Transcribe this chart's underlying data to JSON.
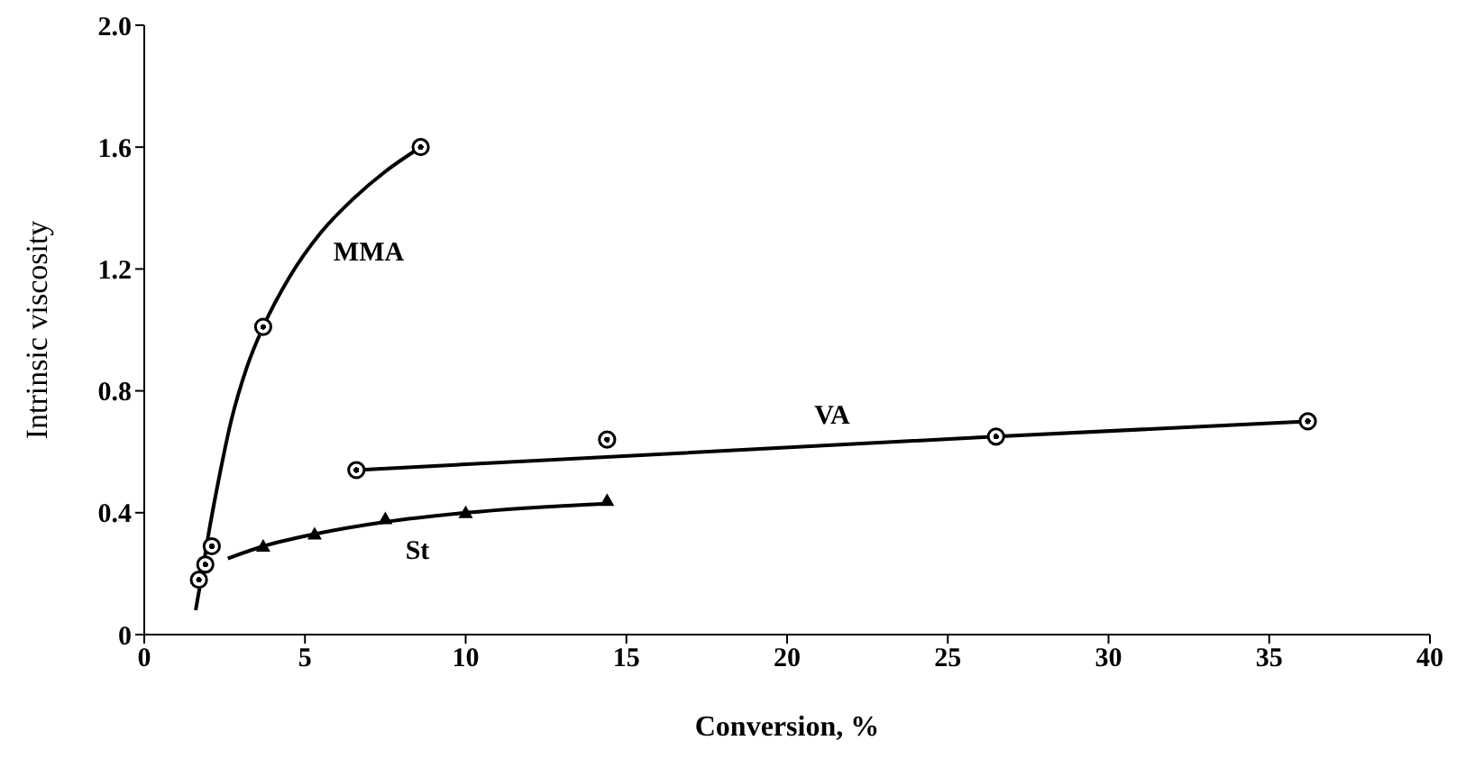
{
  "chart_data": {
    "type": "scatter",
    "xlabel": "Conversion, %",
    "ylabel": "Intrinsic viscosity",
    "xlim": [
      0,
      40
    ],
    "xticks": [
      0,
      5,
      10,
      15,
      20,
      25,
      30,
      35,
      40
    ],
    "ylim": [
      0,
      2.0
    ],
    "yticks": [
      0,
      0.4,
      0.8,
      1.2,
      1.6,
      {
        "value": 2.0,
        "label": "2.0"
      }
    ],
    "grid": false,
    "series": [
      {
        "marker": "circle",
        "color": "#000000",
        "x": [
          1.7,
          1.9,
          2.1,
          3.7,
          8.6
        ],
        "values": [
          0.18,
          0.23,
          0.29,
          1.01,
          1.6
        ]
      },
      {
        "type": "line",
        "name": "MMA",
        "color": "#000000",
        "x": [
          1.6,
          1.8,
          2.0,
          2.3,
          2.7,
          3.2,
          3.7,
          4.5,
          5.5,
          6.5,
          7.5,
          8.6
        ],
        "values": [
          0.08,
          0.2,
          0.33,
          0.5,
          0.7,
          0.88,
          1.01,
          1.17,
          1.32,
          1.43,
          1.52,
          1.6
        ]
      },
      {
        "marker": "circle",
        "color": "#000000",
        "x": [
          6.6,
          14.4,
          26.5,
          36.2
        ],
        "values": [
          0.54,
          0.64,
          0.65,
          0.7
        ]
      },
      {
        "type": "line",
        "name": "VA",
        "color": "#000000",
        "x": [
          6.6,
          26.5,
          36.2
        ],
        "values": [
          0.54,
          0.65,
          0.7
        ]
      },
      {
        "marker": "triangle",
        "color": "#000000",
        "x": [
          3.7,
          5.3,
          7.5,
          10.0,
          14.4
        ],
        "values": [
          0.29,
          0.33,
          0.38,
          0.4,
          0.44
        ]
      },
      {
        "type": "line",
        "name": "St",
        "color": "#000000",
        "x": [
          2.6,
          3.7,
          5.3,
          7.5,
          10.0,
          14.4
        ],
        "values": [
          0.25,
          0.29,
          0.33,
          0.37,
          0.4,
          0.43
        ]
      }
    ]
  }
}
